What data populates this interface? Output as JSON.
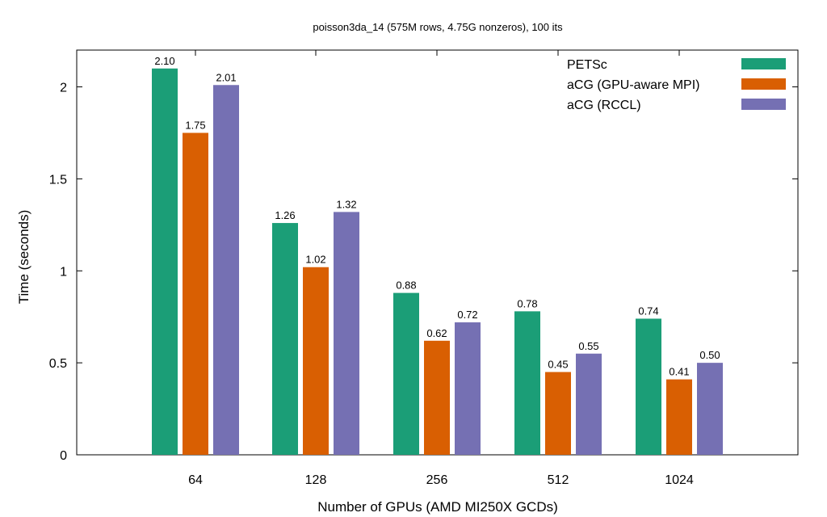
{
  "chart_data": {
    "type": "bar",
    "title": "poisson3da_14 (575M rows, 4.75G nonzeros), 100 its",
    "xlabel": "Number of GPUs (AMD MI250X GCDs)",
    "ylabel": "Time (seconds)",
    "categories": [
      "64",
      "128",
      "256",
      "512",
      "1024"
    ],
    "ylim": [
      0,
      2.2
    ],
    "yticks": [
      {
        "value": 0,
        "label": "0"
      },
      {
        "value": 0.5,
        "label": "0.5"
      },
      {
        "value": 1,
        "label": "1"
      },
      {
        "value": 1.5,
        "label": "1.5"
      },
      {
        "value": 2,
        "label": "2"
      }
    ],
    "grid": false,
    "legend_position": "top-right",
    "series": [
      {
        "name": "PETSc",
        "color": "#1b9e77",
        "values": [
          2.1,
          1.26,
          0.88,
          0.78,
          0.74
        ],
        "labels": [
          "2.10",
          "1.26",
          "0.88",
          "0.78",
          "0.74"
        ]
      },
      {
        "name": "aCG (GPU-aware MPI)",
        "color": "#d95f02",
        "values": [
          1.75,
          1.02,
          0.62,
          0.45,
          0.41
        ],
        "labels": [
          "1.75",
          "1.02",
          "0.62",
          "0.45",
          "0.41"
        ]
      },
      {
        "name": "aCG (RCCL)",
        "color": "#7570b3",
        "values": [
          2.01,
          1.32,
          0.72,
          0.55,
          0.5
        ],
        "labels": [
          "2.01",
          "1.32",
          "0.72",
          "0.55",
          "0.50"
        ]
      }
    ]
  }
}
